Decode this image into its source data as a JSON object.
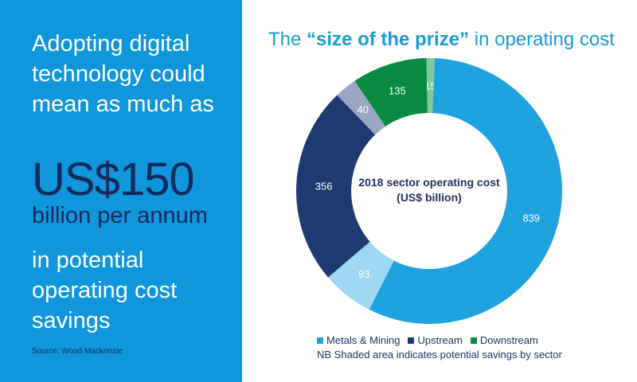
{
  "left_panel": {
    "headline": "Adopting digital technology could mean as much as",
    "amount": "US$150",
    "amount_sub": "billion per annum",
    "tail": "in potential operating cost savings",
    "source": "Source: Wood Mackenzie",
    "background": "#0f96db"
  },
  "chart_data": {
    "type": "pie",
    "donut": true,
    "title_prefix": "The ",
    "title_bold": "“size of the prize”",
    "title_suffix": " in operating cost",
    "center_label": "2018 sector operating cost (US$ billion)",
    "slices": [
      {
        "label": "15",
        "value": 15,
        "sector": "Downstream",
        "shaded": true,
        "color": "#82c79c"
      },
      {
        "label": "839",
        "value": 839,
        "sector": "Metals & Mining",
        "shaded": false,
        "color": "#1fa3de"
      },
      {
        "label": "93",
        "value": 93,
        "sector": "Metals & Mining",
        "shaded": true,
        "color": "#9dd7f1"
      },
      {
        "label": "356",
        "value": 356,
        "sector": "Upstream",
        "shaded": false,
        "color": "#1f3a70"
      },
      {
        "label": "40",
        "value": 40,
        "sector": "Upstream",
        "shaded": true,
        "color": "#9ba6c4"
      },
      {
        "label": "135",
        "value": 135,
        "sector": "Downstream",
        "shaded": false,
        "color": "#0b8a43"
      }
    ],
    "legend": [
      {
        "name": "Metals & Mining",
        "color": "#1fa3de"
      },
      {
        "name": "Upstream",
        "color": "#1f3a70"
      },
      {
        "name": "Downstream",
        "color": "#0b8a43"
      }
    ],
    "note": "NB Shaded area indicates potential savings by sector"
  }
}
